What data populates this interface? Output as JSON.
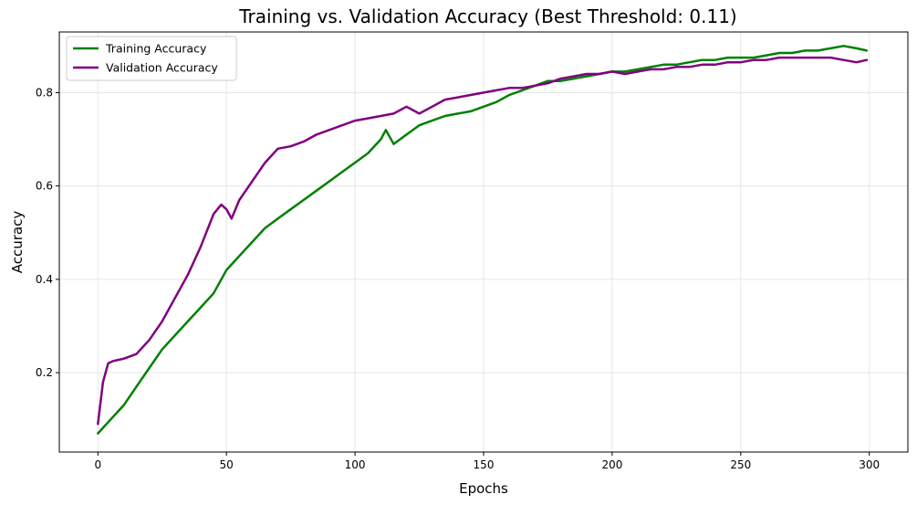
{
  "chart_data": {
    "type": "line",
    "title": "Training vs. Validation Accuracy (Best Threshold: 0.11)",
    "xlabel": "Epochs",
    "ylabel": "Accuracy",
    "xlim": [
      -15,
      315
    ],
    "ylim": [
      0.03,
      0.93
    ],
    "xticks": [
      0,
      50,
      100,
      150,
      200,
      250,
      300
    ],
    "yticks": [
      0.2,
      0.4,
      0.6,
      0.8
    ],
    "xtick_labels": [
      "0",
      "50",
      "100",
      "150",
      "200",
      "250",
      "300"
    ],
    "ytick_labels": [
      "0.2",
      "0.4",
      "0.6",
      "0.8"
    ],
    "grid": true,
    "legend_position": "top-left",
    "series": [
      {
        "name": "Training Accuracy",
        "color": "#008000",
        "x": [
          0,
          5,
          10,
          15,
          20,
          25,
          30,
          35,
          40,
          45,
          50,
          55,
          60,
          65,
          70,
          75,
          80,
          85,
          90,
          95,
          100,
          105,
          110,
          112,
          115,
          120,
          125,
          130,
          135,
          140,
          145,
          150,
          155,
          160,
          165,
          170,
          175,
          180,
          185,
          190,
          195,
          200,
          205,
          210,
          215,
          220,
          225,
          230,
          235,
          240,
          245,
          250,
          255,
          260,
          265,
          270,
          275,
          280,
          285,
          290,
          295,
          299
        ],
        "y": [
          0.07,
          0.1,
          0.13,
          0.17,
          0.21,
          0.25,
          0.28,
          0.31,
          0.34,
          0.37,
          0.42,
          0.45,
          0.48,
          0.51,
          0.53,
          0.55,
          0.57,
          0.59,
          0.61,
          0.63,
          0.65,
          0.67,
          0.7,
          0.72,
          0.69,
          0.71,
          0.73,
          0.74,
          0.75,
          0.755,
          0.76,
          0.77,
          0.78,
          0.795,
          0.805,
          0.815,
          0.825,
          0.825,
          0.83,
          0.835,
          0.84,
          0.845,
          0.845,
          0.85,
          0.855,
          0.86,
          0.86,
          0.865,
          0.87,
          0.87,
          0.875,
          0.875,
          0.875,
          0.88,
          0.885,
          0.885,
          0.89,
          0.89,
          0.895,
          0.9,
          0.895,
          0.89
        ]
      },
      {
        "name": "Validation Accuracy",
        "color": "#800080",
        "x": [
          0,
          2,
          4,
          6,
          10,
          15,
          20,
          25,
          30,
          35,
          40,
          45,
          48,
          50,
          52,
          55,
          60,
          65,
          70,
          75,
          80,
          85,
          90,
          95,
          100,
          105,
          110,
          115,
          120,
          125,
          130,
          135,
          140,
          145,
          150,
          155,
          160,
          165,
          170,
          175,
          180,
          185,
          190,
          195,
          200,
          205,
          210,
          215,
          220,
          225,
          230,
          235,
          240,
          245,
          250,
          255,
          260,
          265,
          270,
          275,
          280,
          285,
          290,
          295,
          299
        ],
        "y": [
          0.09,
          0.18,
          0.22,
          0.225,
          0.23,
          0.24,
          0.27,
          0.31,
          0.36,
          0.41,
          0.47,
          0.54,
          0.56,
          0.55,
          0.53,
          0.57,
          0.61,
          0.65,
          0.68,
          0.685,
          0.695,
          0.71,
          0.72,
          0.73,
          0.74,
          0.745,
          0.75,
          0.755,
          0.77,
          0.755,
          0.77,
          0.785,
          0.79,
          0.795,
          0.8,
          0.805,
          0.81,
          0.81,
          0.815,
          0.82,
          0.83,
          0.835,
          0.84,
          0.84,
          0.845,
          0.84,
          0.845,
          0.85,
          0.85,
          0.855,
          0.855,
          0.86,
          0.86,
          0.865,
          0.865,
          0.87,
          0.87,
          0.875,
          0.875,
          0.875,
          0.875,
          0.875,
          0.87,
          0.865,
          0.87
        ]
      }
    ]
  }
}
